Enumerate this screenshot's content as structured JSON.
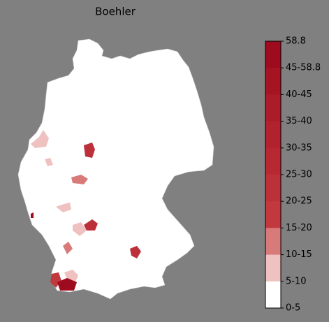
{
  "title": "Boehler",
  "colorbar": {
    "labels": [
      "58.8",
      "45-58.8",
      "40-45",
      "35-40",
      "30-35",
      "25-30",
      "20-25",
      "15-20",
      "10-15",
      "5-10",
      "0-5"
    ],
    "colors": [
      "#9e0a1e",
      "#a61424",
      "#ac1b29",
      "#b2212e",
      "#b72833",
      "#bc3039",
      "#c1393f",
      "#d97a7a",
      "#efc1c1",
      "#ffffff"
    ]
  }
}
